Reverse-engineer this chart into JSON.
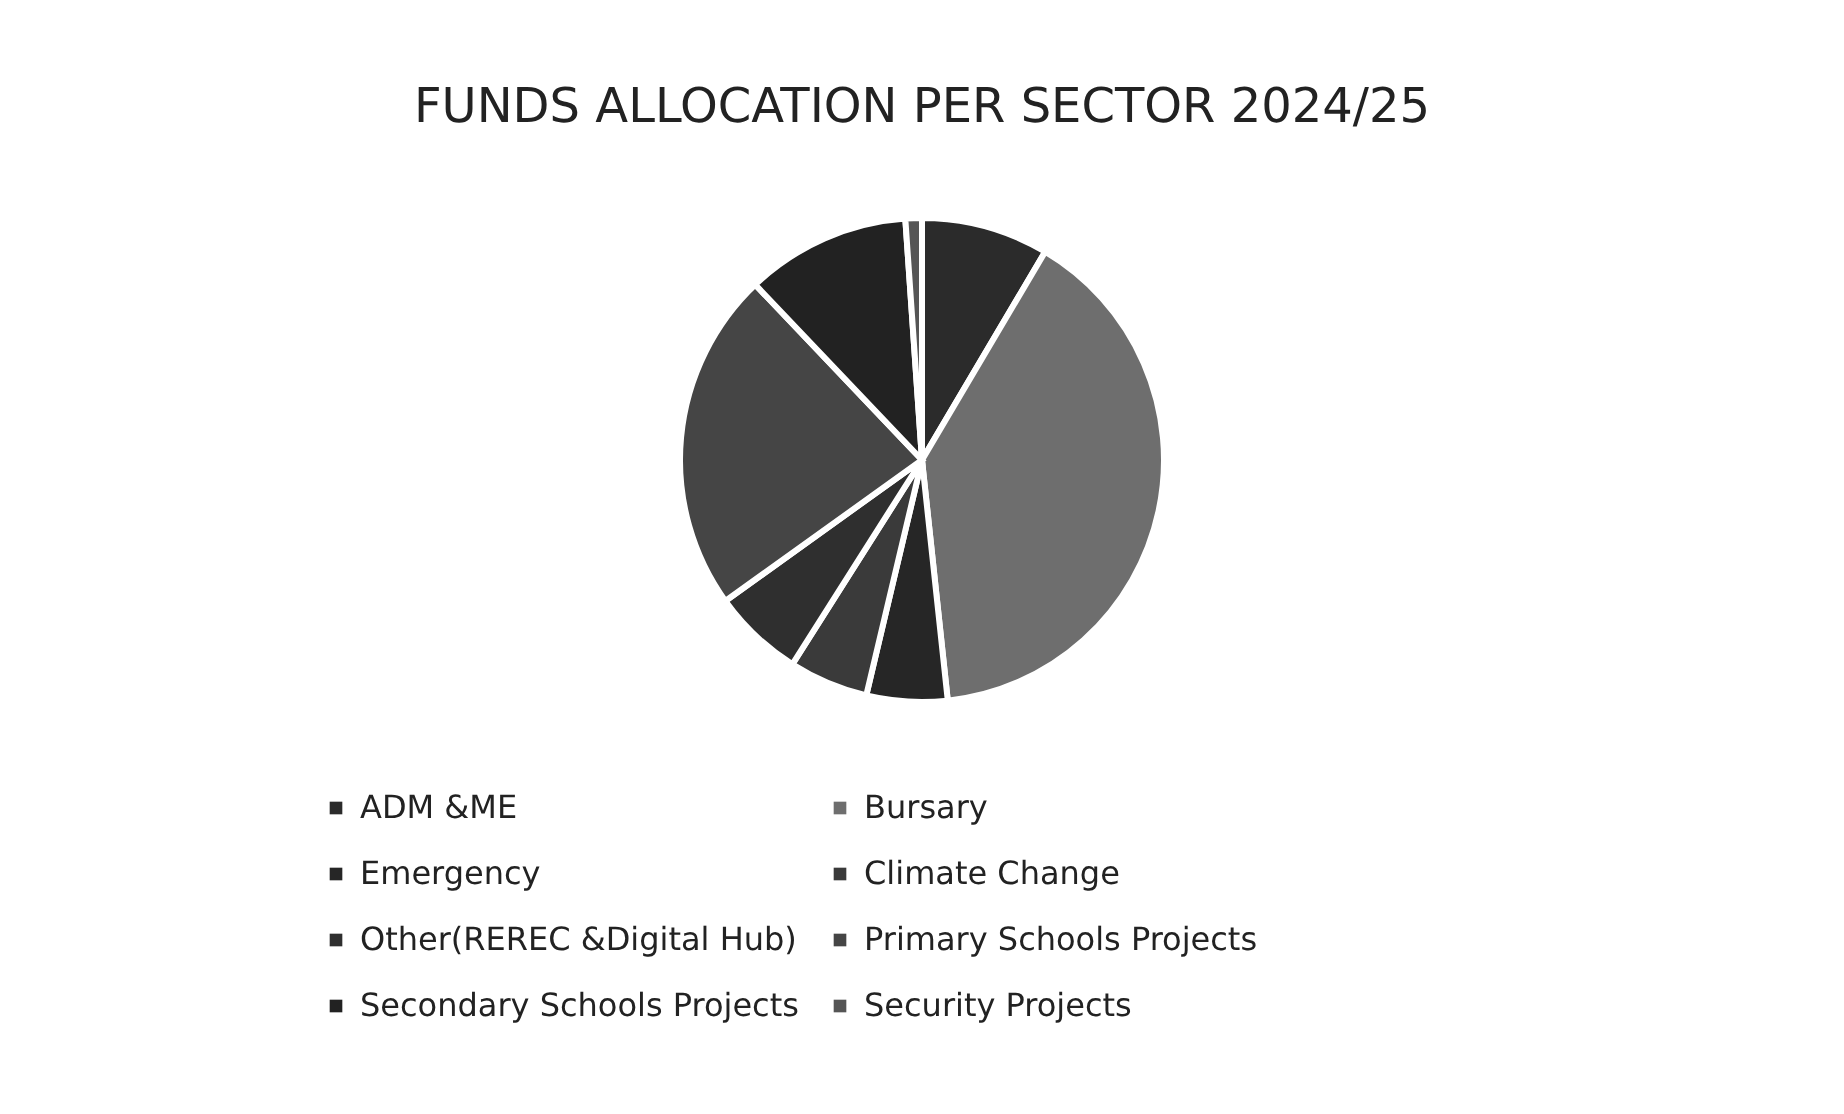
{
  "chart_data": {
    "type": "pie",
    "title": "FUNDS ALLOCATION PER SECTOR 2024/25",
    "categories": [
      "ADM &ME",
      "Bursary",
      "Emergency",
      "Climate Change",
      "Other(REREC &Digital Hub)",
      "Primary Schools Projects",
      "Secondary Schools Projects",
      "Security Projects"
    ],
    "values": [
      8.5,
      39.8,
      5.4,
      5.3,
      6.1,
      22.8,
      11.0,
      1.1
    ],
    "colors": [
      "#2b2b2b",
      "#6e6e6e",
      "#262626",
      "#3a3a3a",
      "#2f2f2f",
      "#454545",
      "#222222",
      "#555555"
    ],
    "legend": "bottom"
  }
}
